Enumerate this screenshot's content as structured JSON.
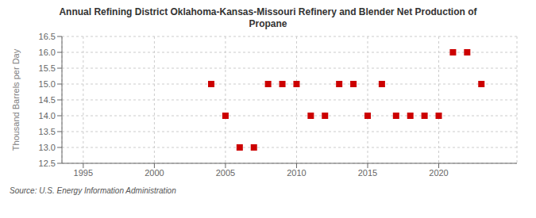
{
  "chart_data": {
    "type": "scatter",
    "title": "Annual Refining District Oklahoma-Kansas-Missouri Refinery and Blender Net Production of\nPropane",
    "ylabel": "Thousand Barrels per Day",
    "annotations": [
      "Source: U.S. Energy Information Administration"
    ],
    "x": [
      2004,
      2005,
      2006,
      2007,
      2008,
      2009,
      2010,
      2011,
      2012,
      2013,
      2014,
      2015,
      2016,
      2017,
      2018,
      2019,
      2020,
      2021,
      2022,
      2023
    ],
    "values": [
      15.0,
      14.0,
      13.0,
      13.0,
      15.0,
      15.0,
      15.0,
      14.0,
      14.0,
      15.0,
      15.0,
      14.0,
      15.0,
      14.0,
      14.0,
      14.0,
      14.0,
      16.0,
      16.0,
      15.0
    ],
    "color": "#cc0000",
    "marker": "square",
    "xlim": [
      1993.5,
      2025.5
    ],
    "xticks": [
      1995,
      2000,
      2005,
      2010,
      2015,
      2020
    ],
    "ylim": [
      12.5,
      16.5
    ],
    "yticks": [
      12.5,
      {
        "value": 13,
        "label": "13.0"
      },
      13.5,
      {
        "value": 14,
        "label": "14.0"
      },
      14.5,
      {
        "value": 15,
        "label": "15.0"
      },
      15.5,
      {
        "value": 16,
        "label": "16.0"
      },
      16.5
    ],
    "grid": true
  }
}
